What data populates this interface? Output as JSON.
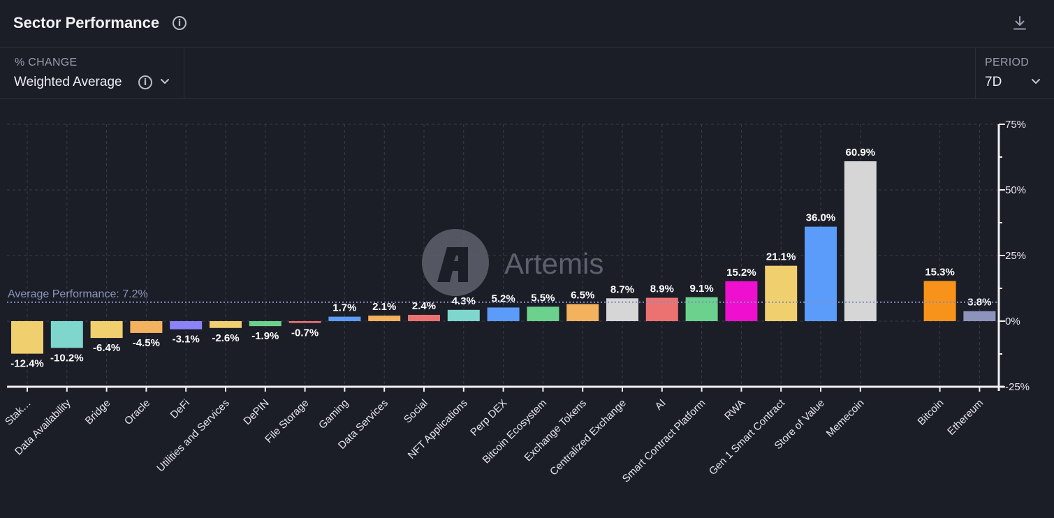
{
  "header": {
    "title": "Sector Performance",
    "info_icon": "info-icon",
    "download_icon": "download-icon"
  },
  "controls": {
    "metric": {
      "label": "% CHANGE",
      "value": "Weighted Average",
      "icon": "info-icon"
    },
    "period": {
      "label": "PERIOD",
      "value": "7D"
    }
  },
  "watermark": {
    "text": "Artemis"
  },
  "chart_data": {
    "type": "bar",
    "title": "Sector Performance",
    "categories": [
      "Stak…",
      "Data Availability",
      "Bridge",
      "Oracle",
      "DeFi",
      "Utilities and Services",
      "DePIN",
      "File Storage",
      "Gaming",
      "Data Services",
      "Social",
      "NFT Applications",
      "Perp DEX",
      "Bitcoin Ecosystem",
      "Exchange Tokens",
      "Centralized Exchange",
      "AI",
      "Smart Contract Platform",
      "RWA",
      "Gen 1 Smart Contract",
      "Store of Value",
      "Memecoin",
      "Bitcoin",
      "Ethereum"
    ],
    "values": [
      -12.4,
      -10.2,
      -6.4,
      -4.5,
      -3.1,
      -2.6,
      -1.9,
      -0.7,
      1.7,
      2.1,
      2.4,
      4.3,
      5.2,
      5.5,
      6.5,
      8.7,
      8.9,
      9.1,
      15.2,
      21.1,
      36.0,
      60.9,
      15.3,
      3.8
    ],
    "value_labels": [
      "-12.4%",
      "-10.2%",
      "-6.4%",
      "-4.5%",
      "-3.1%",
      "-2.6%",
      "-1.9%",
      "-0.7%",
      "1.7%",
      "2.1%",
      "2.4%",
      "4.3%",
      "5.2%",
      "5.5%",
      "6.5%",
      "8.7%",
      "8.9%",
      "9.1%",
      "15.2%",
      "21.1%",
      "36.0%",
      "60.9%",
      "15.3%",
      "3.8%"
    ],
    "colors": [
      "#f0cf6e",
      "#7ed6cd",
      "#f0cf6e",
      "#f2b25e",
      "#8b84f7",
      "#f0cf6e",
      "#6cd18c",
      "#ec7272",
      "#5b9cfa",
      "#f2b25e",
      "#ec7272",
      "#7ed6cd",
      "#5b9cfa",
      "#6cd18c",
      "#f2b25e",
      "#d6d6d6",
      "#ec7272",
      "#6cd18c",
      "#ee0fcf",
      "#f0cf6e",
      "#5b9cfa",
      "#d6d6d6",
      "#f7931a",
      "#8d94bb"
    ],
    "ylim": [
      -25,
      75
    ],
    "yticks": [
      -25,
      0,
      25,
      50,
      75
    ],
    "ytick_labels": [
      "-25%",
      "0%",
      "25%",
      "50%",
      "75%"
    ],
    "average": {
      "value": 7.2,
      "label": "Average Performance: 7.2%"
    },
    "grid": true,
    "xlabel": "",
    "ylabel": ""
  }
}
